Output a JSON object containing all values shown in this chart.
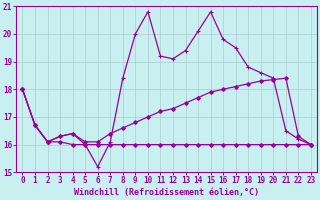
{
  "xlabel": "Windchill (Refroidissement éolien,°C)",
  "bg_color": "#c8f0f0",
  "line_color": "#990099",
  "grid_color": "#aacccc",
  "x_values": [
    0,
    1,
    2,
    3,
    4,
    5,
    6,
    7,
    8,
    9,
    10,
    11,
    12,
    13,
    14,
    15,
    16,
    17,
    18,
    19,
    20,
    21,
    22,
    23
  ],
  "line_flat": [
    18.0,
    16.7,
    16.1,
    16.1,
    16.0,
    16.0,
    16.0,
    16.0,
    16.0,
    16.0,
    16.0,
    16.0,
    16.0,
    16.0,
    16.0,
    16.0,
    16.0,
    16.0,
    16.0,
    16.0,
    16.0,
    16.0,
    16.0,
    16.0
  ],
  "line_diag": [
    18.0,
    16.7,
    16.1,
    16.3,
    16.4,
    16.1,
    16.1,
    16.4,
    16.6,
    16.8,
    17.0,
    17.2,
    17.3,
    17.5,
    17.7,
    17.9,
    18.0,
    18.1,
    18.2,
    18.3,
    18.35,
    18.4,
    16.3,
    16.0
  ],
  "line_main": [
    18.0,
    16.7,
    16.1,
    16.3,
    16.4,
    16.0,
    15.2,
    16.1,
    18.4,
    20.0,
    20.8,
    19.2,
    19.1,
    19.4,
    20.1,
    20.8,
    19.8,
    19.5,
    18.8,
    18.6,
    18.4,
    16.5,
    16.2,
    16.0
  ],
  "ylim": [
    15.0,
    21.0
  ],
  "xlim": [
    -0.5,
    23.5
  ],
  "yticks": [
    15,
    16,
    17,
    18,
    19,
    20,
    21
  ],
  "xticks": [
    0,
    1,
    2,
    3,
    4,
    5,
    6,
    7,
    8,
    9,
    10,
    11,
    12,
    13,
    14,
    15,
    16,
    17,
    18,
    19,
    20,
    21,
    22,
    23
  ],
  "xlabel_fontsize": 6,
  "tick_fontsize": 5.5
}
